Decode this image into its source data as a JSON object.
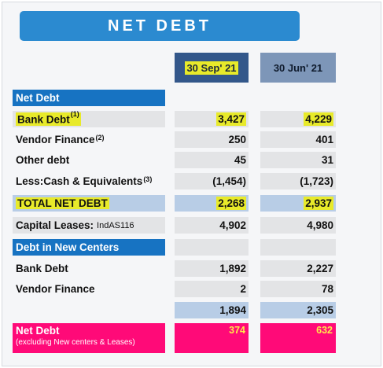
{
  "title": "NET DEBT",
  "columns": {
    "col1": "30 Sep' 21",
    "col2": "30 Jun' 21"
  },
  "rows": {
    "net_debt_header": "Net Debt",
    "bank_debt": {
      "label": "Bank Debt",
      "sup": "(1)",
      "v1": "3,427",
      "v2": "4,229"
    },
    "vendor_finance": {
      "label": "Vendor Finance",
      "sup": "(2)",
      "v1": "250",
      "v2": "401"
    },
    "other_debt": {
      "label": "Other debt",
      "v1": "45",
      "v2": "31"
    },
    "less_cash": {
      "label": "Less:Cash & Equivalents",
      "sup": "(3)",
      "v1": "(1,454)",
      "v2": "(1,723)"
    },
    "total_net_debt": {
      "label": "TOTAL NET DEBT",
      "v1": "2,268",
      "v2": "2,937"
    },
    "capital_leases": {
      "label": "Capital Leases:",
      "note": "IndAS116",
      "v1": "4,902",
      "v2": "4,980"
    },
    "new_centers_header": "Debt in New Centers",
    "nc_bank_debt": {
      "label": "Bank Debt",
      "v1": "1,892",
      "v2": "2,227"
    },
    "nc_vendor_finance": {
      "label": "Vendor Finance",
      "v1": "2",
      "v2": "78"
    },
    "nc_total": {
      "v1": "1,894",
      "v2": "2,305"
    },
    "net_debt_excl": {
      "label": "Net Debt",
      "sub": "(excluding New centers & Leases)",
      "v1": "374",
      "v2": "632"
    }
  },
  "colors": {
    "banner": "#2b8ad0",
    "header_blue": "#1773c2",
    "highlight_yellow": "#e8ea2a",
    "pink": "#ff0a78"
  }
}
